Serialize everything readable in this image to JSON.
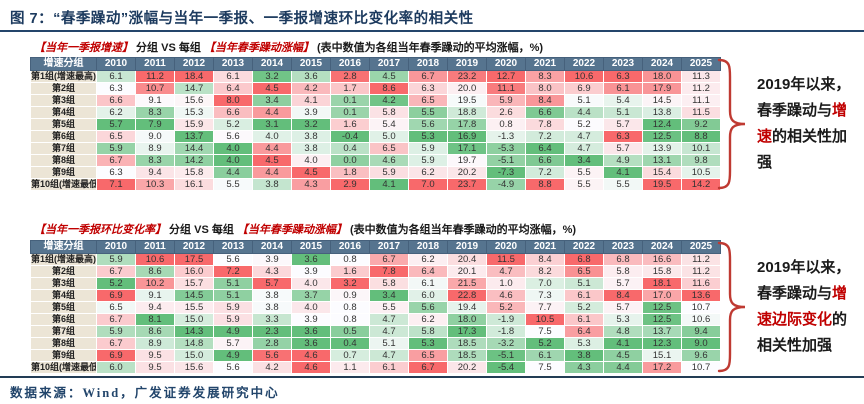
{
  "title": "图 7：“春季躁动”涨幅与当年一季报、一季报增速环比变化率的相关性",
  "footer": {
    "source": "数据来源：Wind，广发证券发展研究中心"
  },
  "colors": {
    "scale_low": "#63be7b",
    "scale_mid": "#fcfcff",
    "scale_high": "#f8696b",
    "header_bg": "#56748f",
    "label_bg": "#ece5d6",
    "accent_red": "#c00000",
    "brace_red": "#bf3a32",
    "title_navy": "#1c3a5e"
  },
  "chart_data": [
    {
      "type": "heatmap",
      "subtitle_segments": [
        {
          "text": "【当年一季报增速】",
          "red": true
        },
        {
          "text": " 分组 VS 每组 ",
          "red": false
        },
        {
          "text": "【当年春季躁动涨幅】",
          "red": true
        },
        {
          "text": "  (表中数值为各组当年春季躁动的平均涨幅，%)",
          "red": false
        }
      ],
      "columns": [
        "增速分组",
        "2010",
        "2011",
        "2012",
        "2013",
        "2014",
        "2015",
        "2016",
        "2017",
        "2018",
        "2019",
        "2020",
        "2021",
        "2022",
        "2023",
        "2024",
        "2025"
      ],
      "rows": [
        {
          "label": "第1组(增速最高)",
          "values": [
            6.1,
            11.2,
            18.4,
            6.1,
            3.2,
            3.6,
            2.8,
            4.5,
            6.7,
            23.2,
            12.7,
            8.3,
            10.6,
            6.3,
            18.0,
            11.3
          ]
        },
        {
          "label": "第2组",
          "values": [
            6.3,
            10.7,
            14.7,
            6.4,
            4.5,
            4.2,
            1.7,
            8.6,
            6.3,
            20.0,
            11.1,
            8.0,
            6.9,
            6.1,
            17.9,
            11.2
          ]
        },
        {
          "label": "第3组",
          "values": [
            6.6,
            9.1,
            15.6,
            8.0,
            3.4,
            4.1,
            0.1,
            4.2,
            6.5,
            19.5,
            5.9,
            8.4,
            5.1,
            5.4,
            14.5,
            11.1
          ]
        },
        {
          "label": "第4组",
          "values": [
            6.2,
            8.3,
            15.3,
            6.6,
            4.4,
            3.9,
            0.1,
            5.8,
            5.5,
            18.8,
            2.6,
            6.6,
            4.4,
            5.1,
            13.8,
            11.5
          ]
        },
        {
          "label": "第5组",
          "values": [
            5.7,
            7.9,
            15.9,
            5.2,
            3.1,
            3.2,
            1.6,
            5.4,
            5.6,
            17.8,
            0.8,
            7.8,
            5.2,
            5.7,
            12.4,
            9.2
          ]
        },
        {
          "label": "第6组",
          "values": [
            6.5,
            9.0,
            13.7,
            5.6,
            4.0,
            3.8,
            -0.4,
            5.0,
            5.3,
            16.9,
            -1.3,
            7.2,
            4.7,
            6.3,
            12.5,
            8.8
          ]
        },
        {
          "label": "第7组",
          "values": [
            5.9,
            8.9,
            14.4,
            4.0,
            4.4,
            3.8,
            0.4,
            6.5,
            5.9,
            17.1,
            -5.3,
            6.4,
            4.7,
            5.7,
            13.9,
            10.1
          ]
        },
        {
          "label": "第8组",
          "values": [
            6.7,
            8.3,
            14.2,
            4.0,
            4.5,
            4.0,
            0.0,
            4.6,
            5.9,
            19.7,
            -5.1,
            6.6,
            3.4,
            4.9,
            13.1,
            9.8
          ]
        },
        {
          "label": "第9组",
          "values": [
            6.3,
            9.4,
            15.8,
            4.4,
            4.4,
            4.5,
            1.8,
            5.9,
            6.2,
            20.2,
            -7.3,
            7.2,
            5.5,
            4.1,
            15.4,
            10.5
          ]
        },
        {
          "label": "第10组(增速最低)",
          "values": [
            7.1,
            10.3,
            16.1,
            5.5,
            3.8,
            4.3,
            2.9,
            4.1,
            7.0,
            23.7,
            -4.9,
            8.8,
            5.5,
            5.5,
            19.5,
            14.2
          ]
        }
      ],
      "annotation_segments": [
        {
          "text": "2019年以来，春季躁动与",
          "red": false
        },
        {
          "text": "增速",
          "red": true
        },
        {
          "text": "的相关性加强",
          "red": false
        }
      ],
      "color_scale_note": "per-column: red=max, white=median, green=min"
    },
    {
      "type": "heatmap",
      "subtitle_segments": [
        {
          "text": "【当年一季报环比变化率】",
          "red": true
        },
        {
          "text": " 分组 VS 每组 ",
          "red": false
        },
        {
          "text": "【当年春季躁动涨幅】",
          "red": true
        },
        {
          "text": "  (表中数值为各组当年春季躁动的平均涨幅，%)",
          "red": false
        }
      ],
      "columns": [
        "增速分组",
        "2010",
        "2011",
        "2012",
        "2013",
        "2014",
        "2015",
        "2016",
        "2017",
        "2018",
        "2019",
        "2020",
        "2021",
        "2022",
        "2023",
        "2024",
        "2025"
      ],
      "rows": [
        {
          "label": "第1组(增速最高)",
          "values": [
            5.9,
            10.6,
            17.5,
            5.6,
            3.9,
            3.6,
            0.8,
            6.7,
            6.2,
            20.4,
            11.5,
            8.4,
            6.8,
            6.8,
            16.6,
            11.2
          ]
        },
        {
          "label": "第2组",
          "values": [
            6.7,
            8.6,
            16.0,
            7.2,
            4.3,
            3.9,
            1.6,
            7.8,
            6.4,
            20.1,
            4.7,
            8.2,
            6.5,
            5.8,
            15.8,
            11.2
          ]
        },
        {
          "label": "第3组",
          "values": [
            5.2,
            10.2,
            15.7,
            5.1,
            5.7,
            4.0,
            3.2,
            5.8,
            6.1,
            21.5,
            1.0,
            7.0,
            5.1,
            5.7,
            18.1,
            11.6
          ]
        },
        {
          "label": "第4组",
          "values": [
            6.9,
            9.1,
            14.5,
            5.1,
            3.8,
            3.7,
            0.9,
            3.4,
            6.0,
            22.8,
            4.6,
            7.3,
            6.1,
            8.4,
            17.0,
            13.6
          ]
        },
        {
          "label": "第5组",
          "values": [
            6.5,
            9.4,
            15.5,
            5.9,
            3.8,
            4.0,
            0.8,
            5.5,
            5.6,
            19.4,
            5.2,
            7.7,
            5.2,
            5.7,
            12.5,
            10.7
          ]
        },
        {
          "label": "第6组",
          "values": [
            6.7,
            8.1,
            15.0,
            5.9,
            3.3,
            3.9,
            0.8,
            4.7,
            6.2,
            18.0,
            -1.9,
            10.5,
            6.1,
            5.3,
            12.5,
            10.6
          ]
        },
        {
          "label": "第7组",
          "values": [
            5.9,
            8.6,
            14.3,
            4.9,
            2.3,
            3.6,
            0.5,
            4.7,
            5.8,
            17.3,
            -1.8,
            7.5,
            6.4,
            4.8,
            13.7,
            9.4
          ]
        },
        {
          "label": "第8组",
          "values": [
            6.7,
            8.9,
            14.8,
            5.7,
            2.8,
            3.6,
            0.4,
            5.1,
            5.3,
            18.5,
            -3.2,
            5.2,
            5.3,
            4.1,
            12.3,
            9.0
          ]
        },
        {
          "label": "第9组",
          "values": [
            6.9,
            9.5,
            15.0,
            4.9,
            5.6,
            4.6,
            0.7,
            4.7,
            6.5,
            18.5,
            -5.1,
            6.1,
            3.8,
            4.5,
            15.1,
            9.6
          ]
        },
        {
          "label": "第10组(增速最低)",
          "values": [
            6.0,
            9.5,
            15.6,
            5.6,
            4.2,
            4.6,
            1.1,
            6.1,
            6.7,
            20.2,
            -5.4,
            7.5,
            4.3,
            4.4,
            17.2,
            10.7
          ]
        }
      ],
      "annotation_segments": [
        {
          "text": "2019年以来，春季躁动与",
          "red": false
        },
        {
          "text": "增速边际变化",
          "red": true
        },
        {
          "text": "的相关性加强",
          "red": false
        }
      ],
      "color_scale_note": "per-column: red=max, white=median, green=min"
    }
  ]
}
